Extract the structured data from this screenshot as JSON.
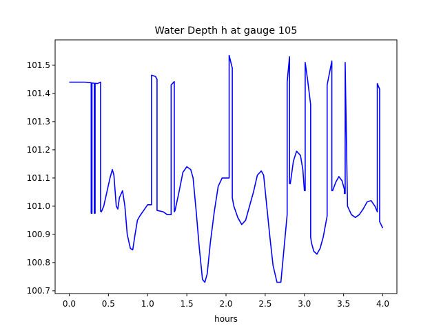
{
  "chart_data": {
    "type": "line",
    "title": "Water Depth h at gauge 105",
    "xlabel": "hours",
    "ylabel": "",
    "xlim": [
      -0.18,
      4.18
    ],
    "ylim": [
      100.69,
      101.59
    ],
    "xticks": [
      0.0,
      0.5,
      1.0,
      1.5,
      2.0,
      2.5,
      3.0,
      3.5,
      4.0
    ],
    "xtick_labels": [
      "0.0",
      "0.5",
      "1.0",
      "1.5",
      "2.0",
      "2.5",
      "3.0",
      "3.5",
      "4.0"
    ],
    "yticks": [
      100.7,
      100.8,
      100.9,
      101.0,
      101.1,
      101.2,
      101.3,
      101.4,
      101.5
    ],
    "ytick_labels": [
      "100.7",
      "100.8",
      "100.9",
      "101.0",
      "101.1",
      "101.2",
      "101.3",
      "101.4",
      "101.5"
    ],
    "grid": false,
    "series": [
      {
        "color": "#0000ff",
        "x": [
          0.0,
          0.2,
          0.28,
          0.28,
          0.29,
          0.29,
          0.32,
          0.32,
          0.33,
          0.33,
          0.36,
          0.4,
          0.4,
          0.41,
          0.44,
          0.48,
          0.52,
          0.55,
          0.57,
          0.6,
          0.62,
          0.64,
          0.68,
          0.71,
          0.74,
          0.78,
          0.81,
          0.84,
          0.87,
          0.9,
          0.95,
          1.0,
          1.05,
          1.05,
          1.1,
          1.12,
          1.12,
          1.2,
          1.25,
          1.3,
          1.3,
          1.34,
          1.34,
          1.35,
          1.4,
          1.45,
          1.5,
          1.55,
          1.58,
          1.62,
          1.66,
          1.7,
          1.73,
          1.76,
          1.8,
          1.85,
          1.9,
          1.95,
          2.0,
          2.04,
          2.04,
          2.08,
          2.08,
          2.1,
          2.15,
          2.2,
          2.25,
          2.3,
          2.35,
          2.4,
          2.45,
          2.48,
          2.52,
          2.56,
          2.6,
          2.65,
          2.7,
          2.74,
          2.78,
          2.78,
          2.81,
          2.81,
          2.82,
          2.86,
          2.9,
          2.95,
          2.98,
          3.0,
          3.01,
          3.01,
          3.04,
          3.08,
          3.08,
          3.09,
          3.12,
          3.16,
          3.2,
          3.24,
          3.29,
          3.29,
          3.35,
          3.35,
          3.36,
          3.4,
          3.44,
          3.48,
          3.51,
          3.51,
          3.52,
          3.52,
          3.55,
          3.6,
          3.65,
          3.7,
          3.75,
          3.8,
          3.85,
          3.9,
          3.93,
          3.93,
          3.96,
          3.96,
          4.0
        ],
        "y": [
          101.44,
          101.44,
          101.438,
          100.975,
          100.975,
          101.437,
          101.436,
          100.975,
          100.975,
          101.436,
          101.435,
          101.44,
          100.982,
          100.98,
          101.0,
          101.05,
          101.1,
          101.13,
          101.11,
          101.0,
          100.99,
          101.03,
          101.055,
          101.0,
          100.9,
          100.85,
          100.845,
          100.9,
          100.95,
          100.965,
          100.985,
          101.005,
          101.005,
          101.465,
          101.46,
          101.45,
          100.985,
          100.98,
          100.97,
          100.97,
          101.43,
          101.442,
          100.98,
          100.985,
          101.05,
          101.12,
          101.14,
          101.13,
          101.1,
          100.98,
          100.85,
          100.74,
          100.73,
          100.76,
          100.87,
          100.98,
          101.07,
          101.1,
          101.1,
          101.1,
          101.535,
          101.49,
          101.03,
          101.0,
          100.96,
          100.935,
          100.95,
          101.0,
          101.05,
          101.11,
          101.125,
          101.11,
          101.0,
          100.89,
          100.79,
          100.73,
          100.73,
          100.85,
          100.97,
          101.44,
          101.53,
          101.08,
          101.08,
          101.16,
          101.195,
          101.18,
          101.13,
          101.055,
          101.055,
          101.51,
          101.45,
          101.36,
          100.89,
          100.87,
          100.84,
          100.83,
          100.85,
          100.89,
          100.965,
          101.43,
          101.515,
          101.055,
          101.055,
          101.085,
          101.105,
          101.09,
          101.06,
          101.045,
          101.045,
          101.51,
          101.0,
          100.97,
          100.96,
          100.97,
          100.99,
          101.015,
          101.02,
          101.0,
          100.98,
          101.435,
          101.415,
          100.945,
          100.922
        ]
      }
    ]
  }
}
